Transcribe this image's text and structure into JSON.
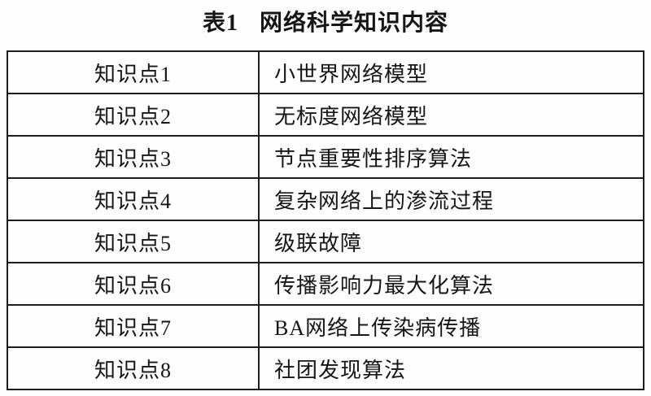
{
  "caption": {
    "table_label": "表1",
    "table_title": "网络科学知识内容"
  },
  "table": {
    "rows": [
      {
        "label": "知识点1",
        "content": "小世界网络模型"
      },
      {
        "label": "知识点2",
        "content": "无标度网络模型"
      },
      {
        "label": "知识点3",
        "content": "节点重要性排序算法"
      },
      {
        "label": "知识点4",
        "content": "复杂网络上的渗流过程"
      },
      {
        "label": "知识点5",
        "content": "级联故障"
      },
      {
        "label": "知识点6",
        "content": "传播影响力最大化算法"
      },
      {
        "label": "知识点7",
        "content": "BA网络上传染病传播"
      },
      {
        "label": "知识点8",
        "content": "社团发现算法"
      }
    ]
  }
}
